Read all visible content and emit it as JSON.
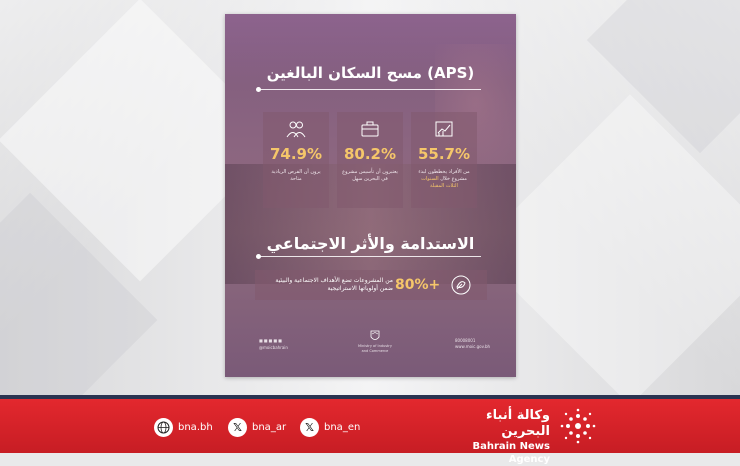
{
  "poster": {
    "title_top": "مسح السكان البالغين (APS)",
    "stats": [
      {
        "value": "74.9%",
        "desc": "يرون أن الفرص الريادية متاحة",
        "icon": "people-icon"
      },
      {
        "value": "80.2%",
        "desc": "يعتبرون أن تأسيس مشروع في البحرين سهل",
        "icon": "briefcase-icon"
      },
      {
        "value": "55.7%",
        "desc": "من الأفراد يخططون لبدء مشروع خلال",
        "desc_highlight": "السنوات الثلاث المقبلة",
        "icon": "chart-icon"
      }
    ],
    "title_bottom": "الاستدامة والأثر الاجتماعي",
    "impact": {
      "value": "80%+",
      "desc": "من المشروعات تضع الأهداف الاجتماعية والبيئية ضمن أولوياتها الاستراتيجية",
      "icon": "sustainability-icon"
    },
    "footer": {
      "social_handle": "@moicbahrain",
      "ministry_line1": "Ministry of Industry",
      "ministry_line2": "and Commerce",
      "phone": "80008001",
      "website": "www.moic.gov.bh"
    }
  },
  "bottom_bar": {
    "socials": [
      {
        "label": "bna.bh",
        "icon": "web-icon"
      },
      {
        "label": "bna_ar",
        "icon": "x-icon"
      },
      {
        "label": "bna_en",
        "icon": "x-icon"
      }
    ],
    "brand_ar": "وكالة أنباء البحرين",
    "brand_en": "Bahrain News Agency",
    "logo_icon": "bna-logo-icon"
  },
  "colors": {
    "accent_gold": "#f5c66a",
    "bar_red": "#d42128",
    "bar_navy": "#2a3350"
  }
}
